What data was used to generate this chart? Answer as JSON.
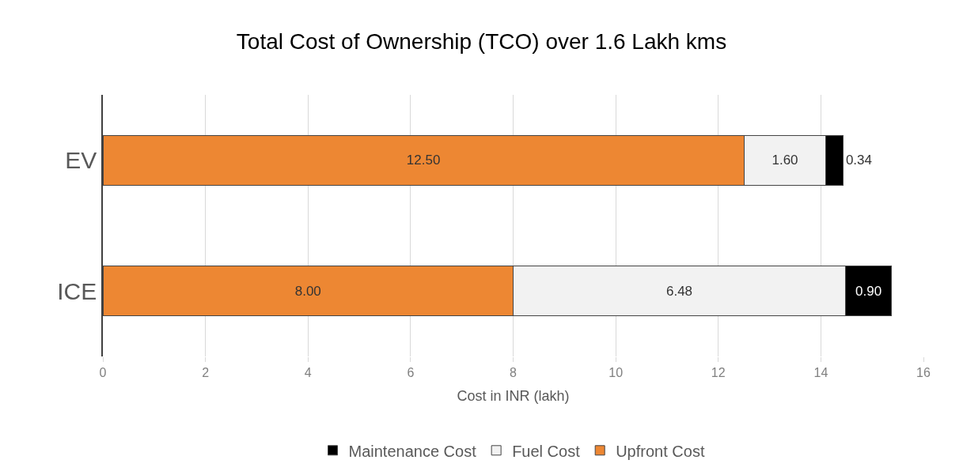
{
  "chart_data": {
    "type": "bar",
    "orientation": "horizontal",
    "stacked": true,
    "title": "Total Cost of Ownership (TCO) over 1.6 Lakh kms",
    "xlabel": "Cost in INR (lakh)",
    "categories": [
      "EV",
      "ICE"
    ],
    "series": [
      {
        "name": "Upfront Cost",
        "color": "#ed8733",
        "values": [
          12.5,
          8.0
        ],
        "value_labels": [
          "12.50",
          "8.00"
        ]
      },
      {
        "name": "Fuel Cost",
        "color": "#f2f2f2",
        "values": [
          1.6,
          6.48
        ],
        "value_labels": [
          "1.60",
          "6.48"
        ]
      },
      {
        "name": "Maintenance Cost",
        "color": "#000000",
        "values": [
          0.34,
          0.9
        ],
        "value_labels": [
          "0.34",
          "0.90"
        ]
      }
    ],
    "xlim": [
      0,
      16
    ],
    "xticks": [
      0,
      2,
      4,
      6,
      8,
      10,
      12,
      14,
      16
    ],
    "grid": "x",
    "legend": "bottom"
  }
}
